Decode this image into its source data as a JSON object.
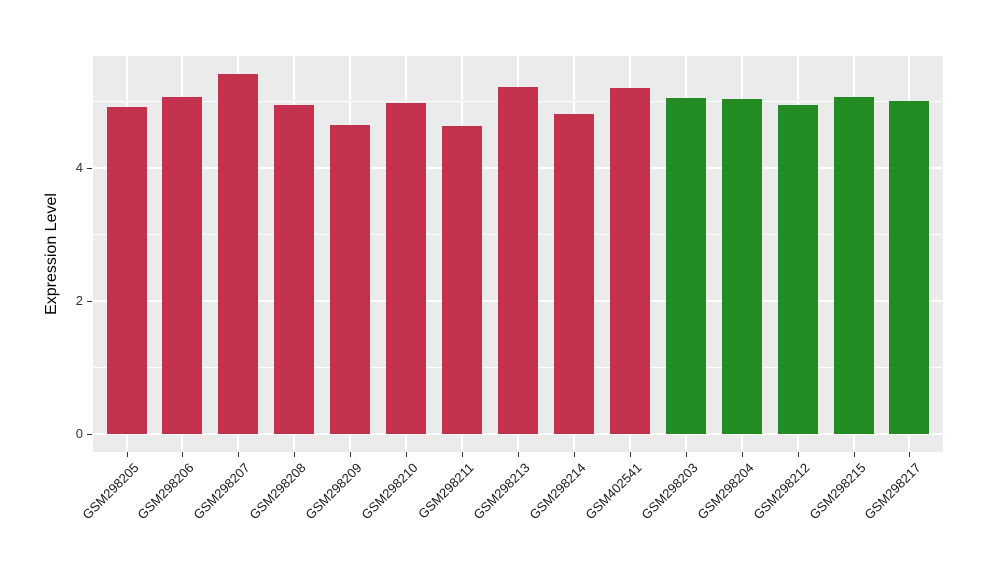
{
  "chart_data": {
    "type": "bar",
    "title": "",
    "xlabel": "",
    "ylabel": "Expression Level",
    "categories": [
      "GSM298205",
      "GSM298206",
      "GSM298207",
      "GSM298208",
      "GSM298209",
      "GSM298210",
      "GSM298211",
      "GSM298213",
      "GSM298214",
      "GSM402541",
      "GSM298203",
      "GSM298204",
      "GSM298212",
      "GSM298215",
      "GSM298217"
    ],
    "values": [
      4.92,
      5.08,
      5.42,
      4.95,
      4.65,
      4.99,
      4.64,
      5.23,
      4.82,
      5.21,
      5.06,
      5.04,
      4.95,
      5.07,
      5.01
    ],
    "groups": [
      "group1",
      "group1",
      "group1",
      "group1",
      "group1",
      "group1",
      "group1",
      "group1",
      "group1",
      "group1",
      "group2",
      "group2",
      "group2",
      "group2",
      "group2"
    ],
    "group_colors": {
      "group1": "#c2324e",
      "group2": "#228b22"
    },
    "yticks": [
      0,
      2,
      4
    ],
    "minor_yticks": [
      1,
      3,
      5
    ],
    "ylim": [
      -0.27,
      5.69
    ],
    "grid": true,
    "legend_position": "none",
    "panel_background": "#ebebeb",
    "gridline_color": "#ffffff",
    "bar_width_fraction": 0.715,
    "x_label_rotation_deg": -45
  }
}
